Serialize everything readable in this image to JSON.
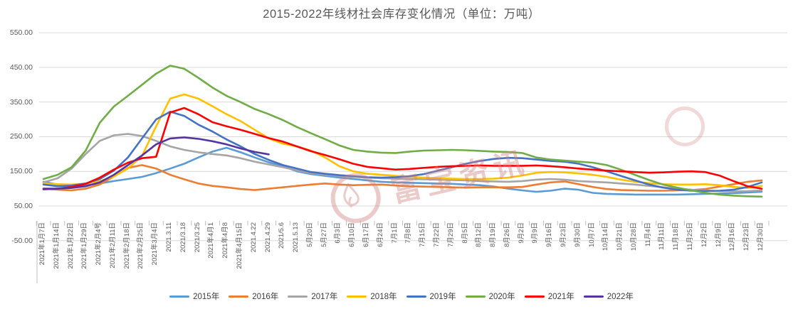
{
  "title": "2015-2022年线材社会库存变化情况（单位：万吨）",
  "watermark": {
    "text": "富宝资讯"
  },
  "chart_data": {
    "type": "line",
    "title": "2015-2022年线材社会库存变化情况（单位：万吨）",
    "unit": "万吨",
    "ylim": [
      -50,
      550
    ],
    "grid": true,
    "legend_position": "bottom",
    "y_tick_labels": [
      "550.00",
      "450.00",
      "350.00",
      "250.00",
      "150.00",
      "50.00",
      "-50.00"
    ],
    "y_ticks": [
      550,
      450,
      350,
      250,
      150,
      50,
      -50
    ],
    "categories": [
      "2021年1月7日",
      "2021年1月14日",
      "2021年1月22日",
      "2021年1月29日",
      "2021年2月4号",
      "2021年2月11日",
      "2021年2月18日",
      "2021年2月25日",
      "2021年3月4日",
      "2021.3.11",
      "2021/3.18",
      "2021/3.25",
      "2021年4月1",
      "2021年4月8",
      "2021年4月15日",
      "2021.4.22",
      "2021.4.29",
      "2021/5.6",
      "2021.5.13",
      "5月20日",
      "5月27日",
      "6月3日",
      "6月10日",
      "6月17日",
      "6月24日",
      "7月1日",
      "7月8日",
      "7月15日",
      "7月22日",
      "7月29日",
      "8月5日",
      "8月12日",
      "8月19日",
      "8月26日",
      "9月2日",
      "9月9日",
      "9月16日",
      "9月23日",
      "9月30日",
      "10月7日",
      "10月14日",
      "10月21日",
      "10月28日",
      "11月4日",
      "11月11日",
      "11月18日",
      "11月25日",
      "12月2日",
      "12月9日",
      "12月16日",
      "12月23日",
      "12月30日"
    ],
    "series": [
      {
        "name": "2015年",
        "color": "#5B9BD5",
        "values": [
          120,
          112,
          108,
          110,
          115,
          122,
          128,
          134,
          145,
          158,
          172,
          190,
          207,
          218,
          205,
          190,
          176,
          165,
          150,
          142,
          137,
          132,
          128,
          124,
          120,
          118,
          117,
          116,
          115,
          114,
          112,
          110,
          106,
          100,
          95,
          91,
          94,
          100,
          97,
          88,
          85,
          84,
          83,
          83,
          83,
          83,
          84,
          85,
          86,
          87,
          89,
          91
        ]
      },
      {
        "name": "2016年",
        "color": "#ED7D31",
        "values": [
          100,
          97,
          95,
          100,
          112,
          135,
          160,
          168,
          158,
          140,
          127,
          115,
          108,
          104,
          99,
          96,
          100,
          104,
          108,
          112,
          115,
          112,
          110,
          111,
          112,
          109,
          107,
          106,
          105,
          104,
          103,
          104,
          104,
          104,
          105,
          112,
          118,
          121,
          113,
          105,
          99,
          96,
          95,
          94,
          94,
          95,
          96,
          99,
          106,
          113,
          120,
          124
        ]
      },
      {
        "name": "2017年",
        "color": "#A5A5A5",
        "values": [
          118,
          130,
          158,
          200,
          238,
          254,
          258,
          252,
          238,
          222,
          212,
          205,
          200,
          196,
          188,
          178,
          170,
          162,
          153,
          145,
          140,
          137,
          134,
          132,
          130,
          129,
          128,
          127,
          126,
          125,
          124,
          122,
          121,
          120,
          122,
          126,
          128,
          126,
          122,
          120,
          118,
          115,
          112,
          108,
          104,
          100,
          97,
          95,
          93,
          92,
          93,
          95
        ]
      },
      {
        "name": "2018年",
        "color": "#FFC000",
        "values": [
          115,
          113,
          112,
          115,
          122,
          135,
          158,
          195,
          280,
          360,
          372,
          360,
          338,
          315,
          295,
          270,
          245,
          230,
          222,
          210,
          190,
          165,
          150,
          143,
          140,
          137,
          134,
          132,
          130,
          129,
          128,
          128,
          129,
          132,
          138,
          146,
          148,
          147,
          144,
          140,
          134,
          126,
          120,
          116,
          113,
          112,
          112,
          113,
          110,
          105,
          102,
          108
        ]
      },
      {
        "name": "2019年",
        "color": "#4472C4",
        "values": [
          112,
          107,
          109,
          115,
          128,
          152,
          190,
          245,
          300,
          322,
          310,
          285,
          265,
          242,
          222,
          200,
          183,
          168,
          158,
          148,
          143,
          139,
          136,
          133,
          132,
          133,
          136,
          142,
          152,
          162,
          172,
          180,
          186,
          189,
          188,
          184,
          180,
          178,
          172,
          162,
          150,
          137,
          124,
          112,
          103,
          97,
          94,
          93,
          94,
          97,
          105,
          118
        ]
      },
      {
        "name": "2020年",
        "color": "#70AD47",
        "values": [
          128,
          140,
          162,
          210,
          290,
          337,
          368,
          400,
          432,
          455,
          446,
          420,
          392,
          368,
          350,
          330,
          315,
          298,
          278,
          260,
          243,
          225,
          212,
          207,
          204,
          203,
          207,
          210,
          211,
          212,
          211,
          209,
          207,
          206,
          203,
          190,
          184,
          181,
          178,
          175,
          168,
          155,
          140,
          125,
          112,
          103,
          95,
          88,
          83,
          80,
          78,
          77
        ]
      },
      {
        "name": "2021年",
        "color": "#FF0000",
        "values": [
          98,
          100,
          105,
          114,
          132,
          155,
          175,
          188,
          192,
          320,
          333,
          315,
          292,
          280,
          270,
          258,
          246,
          236,
          222,
          208,
          197,
          185,
          172,
          163,
          159,
          155,
          157,
          160,
          163,
          165,
          166,
          167,
          166,
          166,
          166,
          167,
          165,
          162,
          158,
          155,
          152,
          150,
          148,
          146,
          147,
          149,
          150,
          148,
          138,
          122,
          107,
          100
        ]
      },
      {
        "name": "2022年",
        "color": "#5535A0",
        "values": [
          100,
          100,
          102,
          107,
          118,
          140,
          168,
          196,
          228,
          245,
          248,
          244,
          237,
          228,
          216,
          206,
          199
        ]
      }
    ]
  }
}
